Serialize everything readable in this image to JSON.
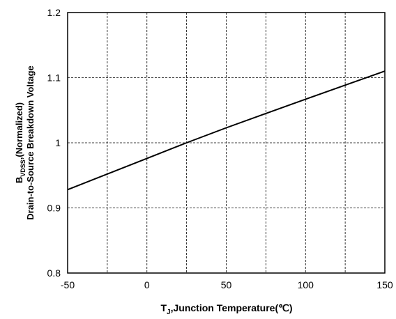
{
  "chart_data": {
    "type": "line",
    "xlim": [
      -50,
      150
    ],
    "ylim": [
      0.8,
      1.2
    ],
    "x_ticks": [
      "-50",
      "0",
      "50",
      "100",
      "150"
    ],
    "y_ticks": [
      "0.8",
      "0.9",
      "1",
      "1.1",
      "1.2"
    ],
    "x_grid_values": [
      -25,
      0,
      25,
      50,
      75,
      100,
      125
    ],
    "y_grid_values": [
      0.9,
      1.0,
      1.1
    ],
    "grid": true,
    "xlabel": {
      "main": "T",
      "sub": "J",
      "rest": ",Junction Temperature(℃)"
    },
    "ylabel": {
      "line1_main": "B",
      "line1_sub": "VDSS",
      "line1_rest": ",(Normalized)",
      "line2": "Drain-to-Source Breakdown Voltage"
    },
    "series": [
      {
        "x": [
          -50,
          0,
          25,
          50,
          100,
          150
        ],
        "y": [
          0.928,
          0.976,
          1.0,
          1.023,
          1.067,
          1.11
        ]
      }
    ]
  }
}
